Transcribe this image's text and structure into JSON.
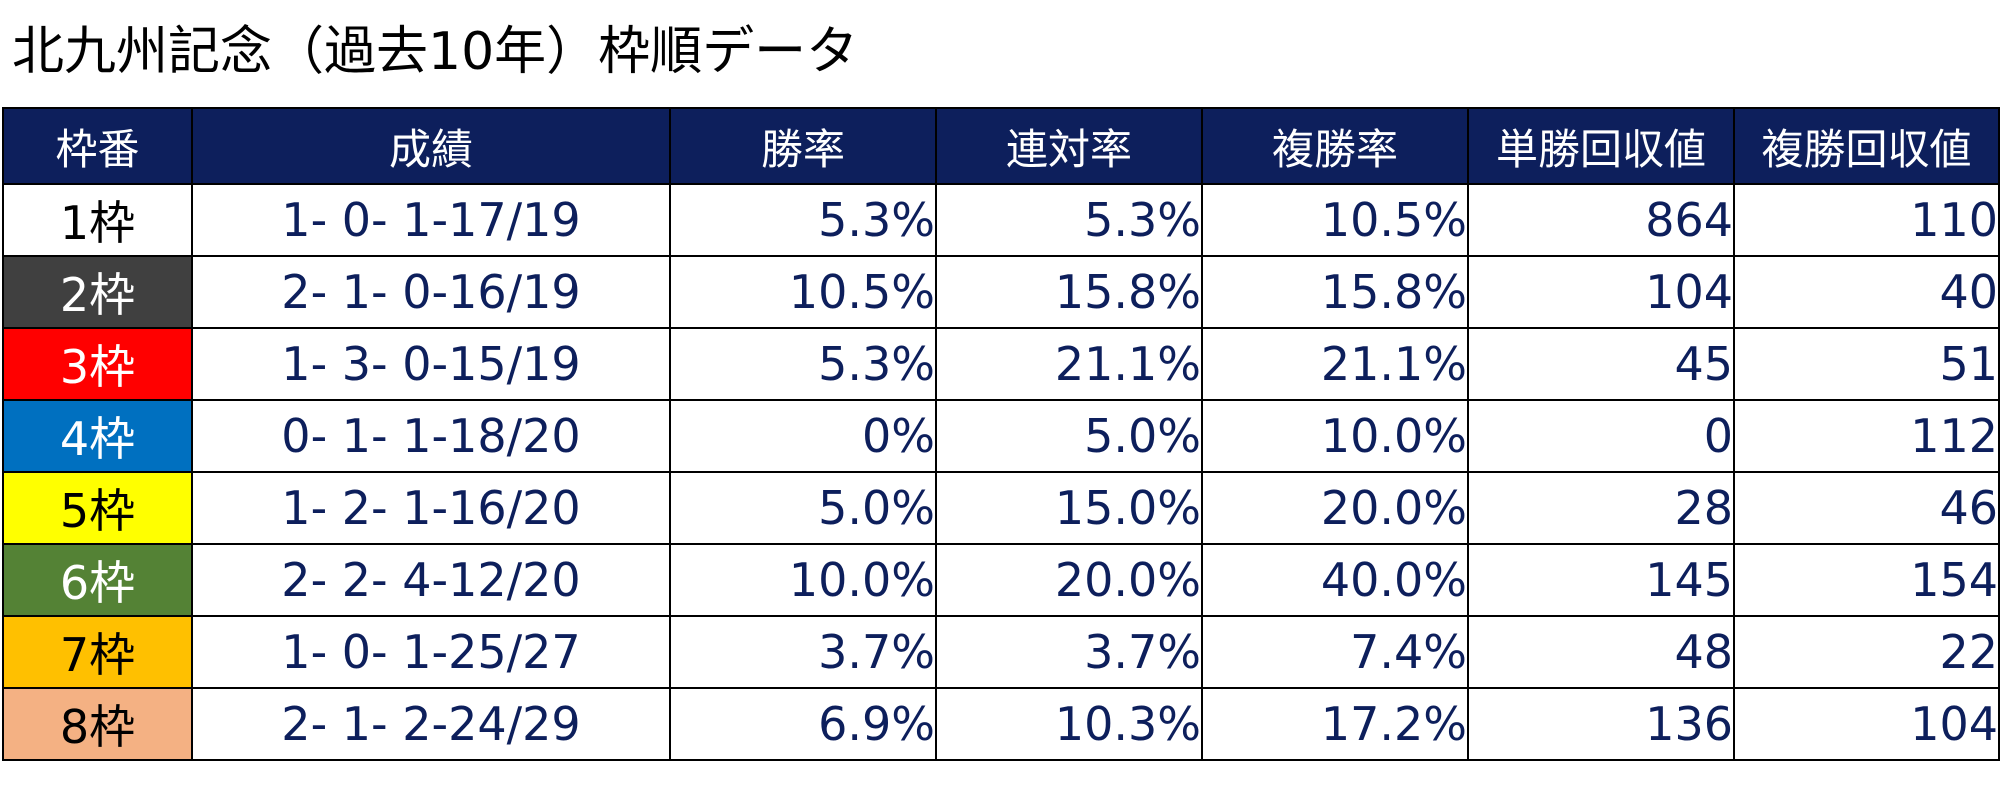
{
  "title": "北九州記念（過去10年）枠順データ",
  "headers": [
    "枠番",
    "成績",
    "勝率",
    "連対率",
    "複勝率",
    "単勝回収値",
    "複勝回収値"
  ],
  "rows": [
    {
      "waku": "1枠",
      "record": "1- 0- 1-17/19",
      "win_rate": "5.3%",
      "rentai_rate": "5.3%",
      "fukusho_rate": "10.5%",
      "tansho_return": "864",
      "fukusho_return": "110",
      "bg": "#ffffff",
      "fg": "#000000"
    },
    {
      "waku": "2枠",
      "record": "2- 1- 0-16/19",
      "win_rate": "10.5%",
      "rentai_rate": "15.8%",
      "fukusho_rate": "15.8%",
      "tansho_return": "104",
      "fukusho_return": "40",
      "bg": "#404040",
      "fg": "#ffffff"
    },
    {
      "waku": "3枠",
      "record": "1- 3- 0-15/19",
      "win_rate": "5.3%",
      "rentai_rate": "21.1%",
      "fukusho_rate": "21.1%",
      "tansho_return": "45",
      "fukusho_return": "51",
      "bg": "#ff0000",
      "fg": "#ffffff"
    },
    {
      "waku": "4枠",
      "record": "0- 1- 1-18/20",
      "win_rate": "0%",
      "rentai_rate": "5.0%",
      "fukusho_rate": "10.0%",
      "tansho_return": "0",
      "fukusho_return": "112",
      "bg": "#0070c0",
      "fg": "#ffffff"
    },
    {
      "waku": "5枠",
      "record": "1- 2- 1-16/20",
      "win_rate": "5.0%",
      "rentai_rate": "15.0%",
      "fukusho_rate": "20.0%",
      "tansho_return": "28",
      "fukusho_return": "46",
      "bg": "#ffff00",
      "fg": "#000000"
    },
    {
      "waku": "6枠",
      "record": "2- 2- 4-12/20",
      "win_rate": "10.0%",
      "rentai_rate": "20.0%",
      "fukusho_rate": "40.0%",
      "tansho_return": "145",
      "fukusho_return": "154",
      "bg": "#548235",
      "fg": "#ffffff"
    },
    {
      "waku": "7枠",
      "record": "1- 0- 1-25/27",
      "win_rate": "3.7%",
      "rentai_rate": "3.7%",
      "fukusho_rate": "7.4%",
      "tansho_return": "48",
      "fukusho_return": "22",
      "bg": "#ffc000",
      "fg": "#000000"
    },
    {
      "waku": "8枠",
      "record": "2- 1- 2-24/29",
      "win_rate": "6.9%",
      "rentai_rate": "10.3%",
      "fukusho_rate": "17.2%",
      "tansho_return": "136",
      "fukusho_return": "104",
      "bg": "#f4b183",
      "fg": "#000000"
    }
  ]
}
